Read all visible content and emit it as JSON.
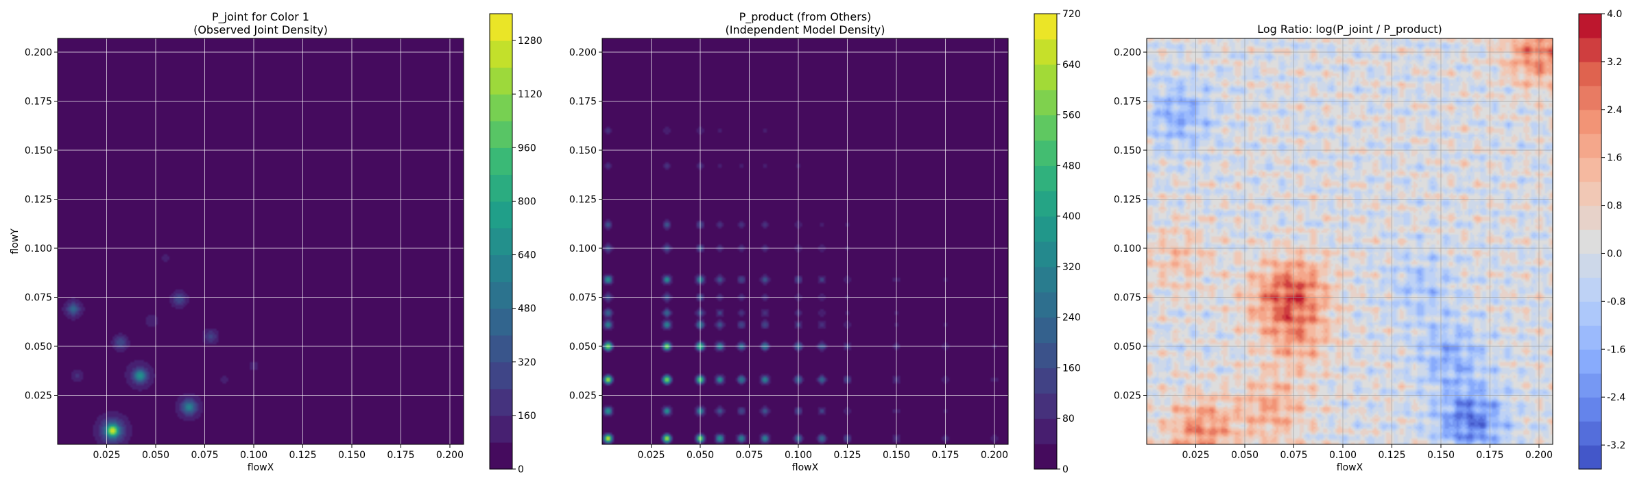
{
  "figure": {
    "panels": [
      {
        "id": "joint",
        "title_line1": "P_joint for Color 1",
        "title_line2": "(Observed Joint Density)",
        "xlabel": "flowX",
        "ylabel": "flowY",
        "xticks": [
          "0.025",
          "0.050",
          "0.075",
          "0.100",
          "0.125",
          "0.150",
          "0.175",
          "0.200"
        ],
        "yticks": [
          "0.025",
          "0.050",
          "0.075",
          "0.100",
          "0.125",
          "0.150",
          "0.175",
          "0.200"
        ],
        "colormap": "viridis",
        "colorbar_ticks": [
          "0",
          "160",
          "320",
          "480",
          "640",
          "800",
          "960",
          "1120",
          "1280"
        ]
      },
      {
        "id": "product",
        "title_line1": "P_product (from Others)",
        "title_line2": "(Independent Model Density)",
        "xlabel": "flowX",
        "ylabel": "",
        "xticks": [
          "0.025",
          "0.050",
          "0.075",
          "0.100",
          "0.125",
          "0.150",
          "0.175",
          "0.200"
        ],
        "yticks": [
          "0.025",
          "0.050",
          "0.075",
          "0.100",
          "0.125",
          "0.150",
          "0.175",
          "0.200"
        ],
        "colormap": "viridis",
        "colorbar_ticks": [
          "0",
          "80",
          "160",
          "240",
          "320",
          "400",
          "480",
          "560",
          "640",
          "720"
        ]
      },
      {
        "id": "logratio",
        "title_line1": "Log Ratio: log(P_joint / P_product)",
        "title_line2": "",
        "xlabel": "flowX",
        "ylabel": "",
        "xticks": [
          "0.025",
          "0.050",
          "0.075",
          "0.100",
          "0.125",
          "0.150",
          "0.175",
          "0.200"
        ],
        "yticks": [
          "0.025",
          "0.050",
          "0.075",
          "0.100",
          "0.125",
          "0.150",
          "0.175",
          "0.200"
        ],
        "colormap": "coolwarm",
        "colorbar_ticks": [
          "-3.2",
          "-2.4",
          "-1.6",
          "-0.8",
          "0.0",
          "0.8",
          "1.6",
          "2.4",
          "3.2",
          "4.0"
        ]
      }
    ]
  },
  "chart_data": [
    {
      "type": "heatmap",
      "title": "P_joint for Color 1\n(Observed Joint Density)",
      "xlabel": "flowX",
      "ylabel": "flowY",
      "xlim": [
        0.0,
        0.207
      ],
      "ylim": [
        0.0,
        0.207
      ],
      "colorbar": {
        "min": 0,
        "max": 1360,
        "levels": 17,
        "ticks": [
          0,
          160,
          320,
          480,
          640,
          800,
          960,
          1120,
          1280
        ]
      },
      "grid": true,
      "hotspots": [
        {
          "x": 0.028,
          "y": 0.007,
          "value": 1300
        },
        {
          "x": 0.042,
          "y": 0.035,
          "value": 700
        },
        {
          "x": 0.067,
          "y": 0.019,
          "value": 650
        },
        {
          "x": 0.008,
          "y": 0.069,
          "value": 420
        },
        {
          "x": 0.062,
          "y": 0.074,
          "value": 330
        },
        {
          "x": 0.078,
          "y": 0.055,
          "value": 280
        },
        {
          "x": 0.032,
          "y": 0.052,
          "value": 300
        },
        {
          "x": 0.01,
          "y": 0.035,
          "value": 170
        },
        {
          "x": 0.048,
          "y": 0.063,
          "value": 160
        },
        {
          "x": 0.1,
          "y": 0.04,
          "value": 120
        },
        {
          "x": 0.055,
          "y": 0.095,
          "value": 110
        },
        {
          "x": 0.085,
          "y": 0.033,
          "value": 100
        }
      ]
    },
    {
      "type": "heatmap",
      "title": "P_product (from Others)\n(Independent Model Density)",
      "xlabel": "flowX",
      "ylabel": "",
      "xlim": [
        0.0,
        0.207
      ],
      "ylim": [
        0.0,
        0.207
      ],
      "colorbar": {
        "min": 0,
        "max": 720,
        "levels": 18,
        "ticks": [
          0,
          80,
          160,
          240,
          320,
          400,
          480,
          560,
          640,
          720
        ]
      },
      "grid": true,
      "x_marginal_peaks": [
        {
          "x": 0.003,
          "w": 1.0
        },
        {
          "x": 0.033,
          "w": 0.95
        },
        {
          "x": 0.05,
          "w": 0.85
        },
        {
          "x": 0.06,
          "w": 0.55
        },
        {
          "x": 0.071,
          "w": 0.45
        },
        {
          "x": 0.083,
          "w": 0.5
        },
        {
          "x": 0.1,
          "w": 0.4
        },
        {
          "x": 0.112,
          "w": 0.35
        },
        {
          "x": 0.125,
          "w": 0.22
        },
        {
          "x": 0.15,
          "w": 0.18
        },
        {
          "x": 0.175,
          "w": 0.12
        },
        {
          "x": 0.2,
          "w": 0.1
        }
      ],
      "y_marginal_peaks": [
        {
          "y": 0.003,
          "w": 1.0
        },
        {
          "y": 0.017,
          "w": 0.55
        },
        {
          "y": 0.033,
          "w": 0.95
        },
        {
          "y": 0.05,
          "w": 0.9
        },
        {
          "y": 0.061,
          "w": 0.5
        },
        {
          "y": 0.067,
          "w": 0.35
        },
        {
          "y": 0.075,
          "w": 0.3
        },
        {
          "y": 0.084,
          "w": 0.55
        },
        {
          "y": 0.1,
          "w": 0.3
        },
        {
          "y": 0.112,
          "w": 0.28
        },
        {
          "y": 0.142,
          "w": 0.15
        },
        {
          "y": 0.16,
          "w": 0.12
        }
      ]
    },
    {
      "type": "heatmap",
      "title": "Log Ratio: log(P_joint / P_product)",
      "xlabel": "flowX",
      "ylabel": "",
      "xlim": [
        0.0,
        0.207
      ],
      "ylim": [
        0.0,
        0.207
      ],
      "colorbar": {
        "min": -3.6,
        "max": 4.0,
        "levels": 19,
        "ticks": [
          -3.2,
          -2.4,
          -1.6,
          -0.8,
          0.0,
          0.8,
          1.6,
          2.4,
          3.2,
          4.0
        ]
      },
      "grid": true,
      "regions": [
        {
          "x": 0.2,
          "y": 0.2,
          "value": 2.4
        },
        {
          "x": 0.077,
          "y": 0.08,
          "value": 2.0
        },
        {
          "x": 0.064,
          "y": 0.018,
          "value": 1.6
        },
        {
          "x": 0.028,
          "y": 0.007,
          "value": 2.2
        },
        {
          "x": 0.077,
          "y": 0.055,
          "value": 1.6
        },
        {
          "x": 0.065,
          "y": 0.073,
          "value": 1.3
        },
        {
          "x": 0.016,
          "y": 0.095,
          "value": 1.0
        },
        {
          "x": 0.017,
          "y": 0.168,
          "value": -1.6
        },
        {
          "x": 0.165,
          "y": 0.012,
          "value": -2.8
        },
        {
          "x": 0.155,
          "y": 0.045,
          "value": -1.6
        },
        {
          "x": 0.14,
          "y": 0.08,
          "value": -1.0
        }
      ]
    }
  ]
}
